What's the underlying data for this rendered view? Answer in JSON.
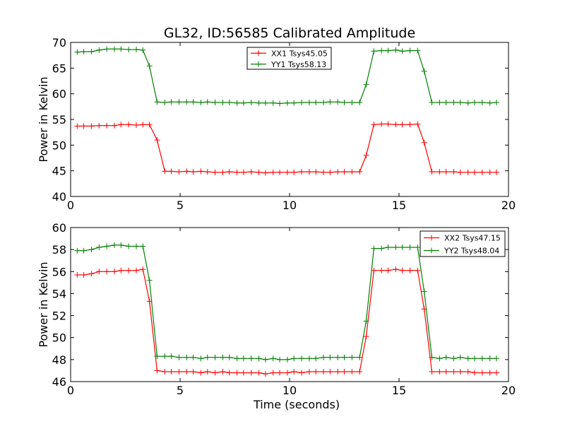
{
  "title": "GL32, ID:56585 Calibrated Amplitude",
  "chart_data": [
    {
      "type": "line",
      "title": "GL32, ID:56585 Calibrated Amplitude",
      "xlabel": "",
      "ylabel": "Power in Kelvin",
      "xlim": [
        0,
        20
      ],
      "ylim": [
        40,
        70
      ],
      "xticks": [
        0,
        5,
        10,
        15,
        20
      ],
      "yticks": [
        40,
        45,
        50,
        55,
        60,
        65,
        70
      ],
      "grid": false,
      "legend_position": "top-center",
      "x": [
        0.3,
        0.6,
        0.95,
        1.3,
        1.65,
        2.0,
        2.3,
        2.65,
        3.0,
        3.3,
        3.6,
        3.95,
        4.3,
        4.6,
        4.95,
        5.3,
        5.6,
        5.95,
        6.25,
        6.6,
        6.95,
        7.25,
        7.6,
        7.9,
        8.25,
        8.6,
        8.9,
        9.25,
        9.55,
        9.9,
        10.2,
        10.55,
        10.9,
        11.2,
        11.55,
        11.85,
        12.2,
        12.5,
        12.85,
        13.2,
        13.5,
        13.85,
        14.2,
        14.5,
        14.85,
        15.15,
        15.5,
        15.85,
        16.15,
        16.5,
        16.85,
        17.15,
        17.5,
        17.8,
        18.15,
        18.45,
        18.8,
        19.15,
        19.45
      ],
      "series": [
        {
          "name": "XX1 Tsys45.05",
          "color": "#ff0000",
          "values": [
            53.7,
            53.7,
            53.7,
            53.8,
            53.8,
            53.8,
            54.0,
            54.0,
            53.9,
            54.0,
            54.0,
            51.0,
            44.9,
            44.9,
            44.8,
            44.9,
            44.8,
            44.9,
            44.8,
            44.7,
            44.7,
            44.8,
            44.7,
            44.7,
            44.8,
            44.7,
            44.6,
            44.7,
            44.7,
            44.7,
            44.7,
            44.8,
            44.8,
            44.8,
            44.7,
            44.7,
            44.8,
            44.8,
            44.8,
            44.8,
            48.0,
            54.0,
            54.1,
            54.1,
            54.0,
            54.0,
            54.0,
            54.1,
            50.5,
            44.8,
            44.8,
            44.8,
            44.8,
            44.7,
            44.7,
            44.7,
            44.7,
            44.7,
            44.7
          ]
        },
        {
          "name": "YY1 Tsys58.13",
          "color": "#008000",
          "values": [
            68.1,
            68.2,
            68.2,
            68.5,
            68.7,
            68.7,
            68.7,
            68.6,
            68.6,
            68.5,
            65.4,
            58.4,
            58.3,
            58.4,
            58.4,
            58.4,
            58.4,
            58.3,
            58.4,
            58.3,
            58.3,
            58.3,
            58.2,
            58.2,
            58.3,
            58.2,
            58.2,
            58.2,
            58.1,
            58.2,
            58.2,
            58.3,
            58.3,
            58.3,
            58.3,
            58.4,
            58.4,
            58.3,
            58.3,
            58.3,
            61.8,
            68.3,
            68.4,
            68.4,
            68.5,
            68.3,
            68.4,
            68.4,
            64.4,
            58.3,
            58.3,
            58.3,
            58.3,
            58.3,
            58.2,
            58.3,
            58.3,
            58.2,
            58.3
          ]
        }
      ]
    },
    {
      "type": "line",
      "title": "",
      "xlabel": "Time (seconds)",
      "ylabel": "Power in Kelvin",
      "xlim": [
        0,
        20
      ],
      "ylim": [
        46,
        60
      ],
      "xticks": [
        0,
        5,
        10,
        15,
        20
      ],
      "yticks": [
        46,
        48,
        50,
        52,
        54,
        56,
        58,
        60
      ],
      "grid": false,
      "legend_position": "top-right",
      "x": [
        0.3,
        0.6,
        0.95,
        1.3,
        1.65,
        2.0,
        2.3,
        2.65,
        3.0,
        3.3,
        3.6,
        3.95,
        4.3,
        4.6,
        4.95,
        5.3,
        5.6,
        5.95,
        6.25,
        6.6,
        6.95,
        7.25,
        7.6,
        7.9,
        8.25,
        8.6,
        8.9,
        9.25,
        9.55,
        9.9,
        10.2,
        10.55,
        10.9,
        11.2,
        11.55,
        11.85,
        12.2,
        12.5,
        12.85,
        13.2,
        13.5,
        13.85,
        14.2,
        14.5,
        14.85,
        15.15,
        15.5,
        15.85,
        16.15,
        16.5,
        16.85,
        17.15,
        17.5,
        17.8,
        18.15,
        18.45,
        18.8,
        19.15,
        19.45
      ],
      "series": [
        {
          "name": "XX2 Tsys47.15",
          "color": "#ff0000",
          "values": [
            55.7,
            55.7,
            55.8,
            56.0,
            56.0,
            56.0,
            56.1,
            56.1,
            56.1,
            56.2,
            53.3,
            47.0,
            46.9,
            46.9,
            46.9,
            46.9,
            46.9,
            46.8,
            46.9,
            46.8,
            46.9,
            46.8,
            46.8,
            46.8,
            46.8,
            46.8,
            46.7,
            46.8,
            46.8,
            46.8,
            46.9,
            46.8,
            46.9,
            46.9,
            46.9,
            46.9,
            46.9,
            46.9,
            46.9,
            46.9,
            50.1,
            56.1,
            56.1,
            56.1,
            56.2,
            56.1,
            56.1,
            56.1,
            52.6,
            46.9,
            46.9,
            46.9,
            46.9,
            46.9,
            46.9,
            46.8,
            46.8,
            46.8,
            46.8
          ]
        },
        {
          "name": "YY2 Tsys48.04",
          "color": "#008000",
          "values": [
            57.9,
            57.9,
            58.0,
            58.2,
            58.3,
            58.4,
            58.4,
            58.3,
            58.3,
            58.3,
            55.2,
            48.3,
            48.3,
            48.3,
            48.2,
            48.2,
            48.2,
            48.1,
            48.2,
            48.2,
            48.2,
            48.2,
            48.1,
            48.1,
            48.1,
            48.1,
            48.0,
            48.1,
            48.0,
            48.0,
            48.1,
            48.1,
            48.1,
            48.1,
            48.2,
            48.2,
            48.2,
            48.2,
            48.2,
            48.2,
            51.5,
            58.1,
            58.1,
            58.2,
            58.2,
            58.2,
            58.2,
            58.2,
            54.2,
            48.2,
            48.1,
            48.2,
            48.1,
            48.2,
            48.1,
            48.1,
            48.1,
            48.1,
            48.1
          ]
        }
      ]
    }
  ]
}
